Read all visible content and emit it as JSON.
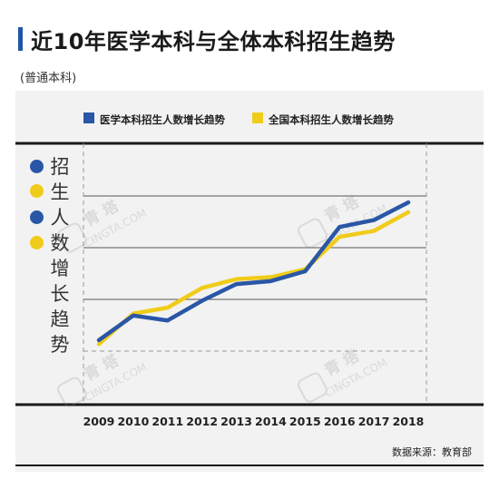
{
  "title": "近10年医学本科与全体本科招生趋势",
  "subtitle": "(普通本科)",
  "source": "数据来源：教育部",
  "vertical_title": [
    "招",
    "生",
    "人",
    "数",
    "增",
    "长",
    "趋",
    "势"
  ],
  "watermark": {
    "cn": "青 塔",
    "en": "CINGTA.COM"
  },
  "colors": {
    "medical": "#2a56a6",
    "national": "#f0cc1a",
    "title_accent": "#2155a8"
  },
  "chart_data": {
    "type": "line",
    "x": [
      "2009",
      "2010",
      "2011",
      "2012",
      "2013",
      "2014",
      "2015",
      "2016",
      "2017",
      "2018"
    ],
    "series": [
      {
        "name": "医学本科招生人数增长趋势",
        "values": [
          0,
          25,
          20,
          40,
          57,
          60,
          70,
          115,
          122,
          140
        ]
      },
      {
        "name": "全国本科招生人数增长趋势",
        "values": [
          -4,
          27,
          33,
          53,
          62,
          64,
          72,
          105,
          111,
          130
        ]
      }
    ],
    "ylim": [
      -60,
      200
    ],
    "grid": true,
    "legend": "top"
  }
}
